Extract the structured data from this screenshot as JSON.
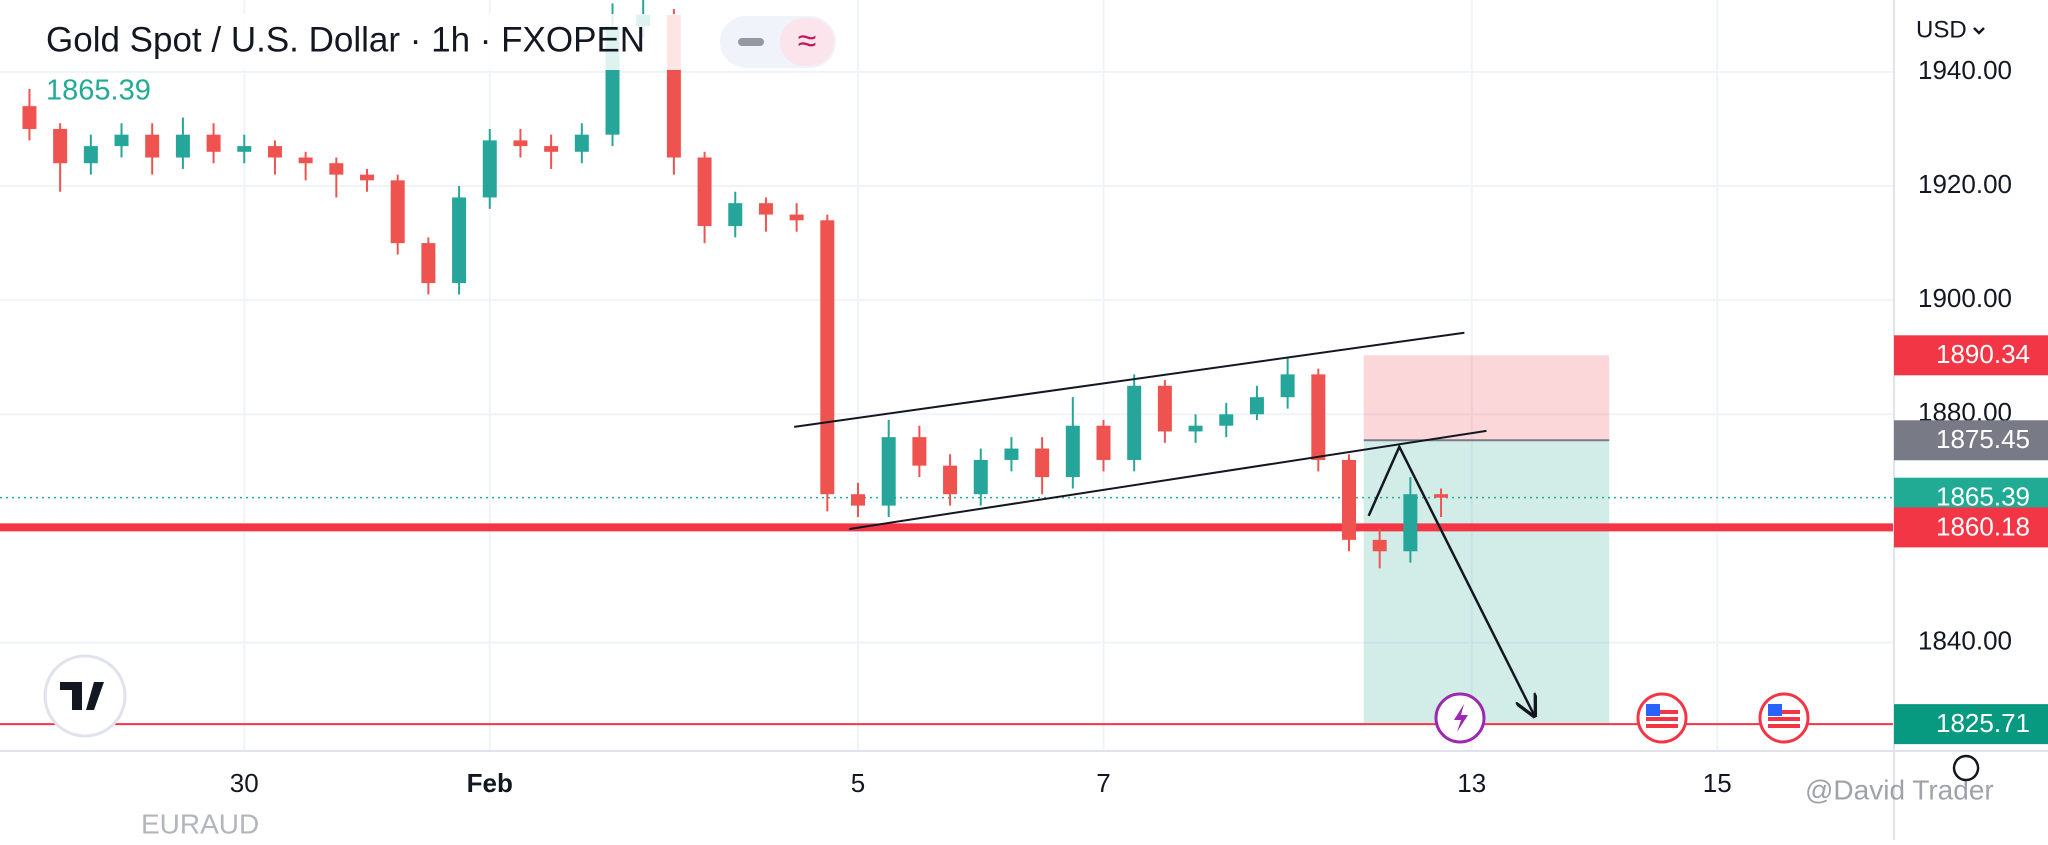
{
  "header": {
    "title": "Gold Spot / U.S. Dollar · 1h · FXOPEN",
    "currency": "USD",
    "watermark": "@David Trader",
    "next_symbol": "EURAUD"
  },
  "chart_data": {
    "type": "candlestick",
    "x": [
      -1.75,
      -1.5,
      -1.25,
      -1,
      -0.75,
      -0.5,
      -0.25,
      0,
      0.25,
      0.5,
      0.75,
      1,
      1.25,
      1.5,
      1.75,
      2,
      2.25,
      2.5,
      2.75,
      3,
      3.25,
      3.5,
      3.75,
      4,
      4.25,
      4.5,
      4.75,
      5,
      5.25,
      5.5,
      5.75,
      6,
      6.25,
      6.5,
      6.75,
      7,
      7.25,
      7.5,
      7.75,
      8,
      8.25,
      8.5,
      8.75,
      9,
      9.25,
      9.5,
      9.75
    ],
    "open": [
      1934,
      1930,
      1924,
      1927,
      1929,
      1925,
      1929,
      1926,
      1927,
      1925,
      1924,
      1922,
      1921,
      1910,
      1903,
      1918,
      1928,
      1927,
      1926,
      1929,
      1948,
      1950,
      1925,
      1913,
      1917,
      1915,
      1914,
      1866,
      1864,
      1876,
      1871,
      1866,
      1872,
      1874,
      1869,
      1878,
      1872,
      1885,
      1877,
      1878,
      1880,
      1883,
      1887,
      1872,
      1858,
      1856,
      1866
    ],
    "high": [
      1937,
      1931,
      1929,
      1931,
      1931,
      1932,
      1931,
      1929,
      1928,
      1926,
      1925,
      1923,
      1922,
      1911,
      1920,
      1930,
      1930,
      1929,
      1931,
      1952,
      1953,
      1951,
      1926,
      1919,
      1918,
      1917,
      1915,
      1868,
      1879,
      1878,
      1873,
      1874,
      1876,
      1876,
      1883,
      1879,
      1887,
      1886,
      1880,
      1882,
      1885,
      1890,
      1888,
      1873,
      1860,
      1869,
      1867
    ],
    "low": [
      1928,
      1919,
      1922,
      1925,
      1922,
      1923,
      1924,
      1924,
      1922,
      1921,
      1918,
      1919,
      1908,
      1901,
      1901,
      1916,
      1925,
      1923,
      1924,
      1927,
      1946,
      1922,
      1910,
      1911,
      1912,
      1912,
      1863,
      1862,
      1862,
      1869,
      1864,
      1864,
      1870,
      1866,
      1867,
      1870,
      1870,
      1875,
      1875,
      1876,
      1879,
      1881,
      1870,
      1856,
      1853,
      1854,
      1862
    ],
    "close": [
      1930,
      1924,
      1927,
      1929,
      1925,
      1929,
      1926,
      1927,
      1925,
      1924,
      1922,
      1921,
      1910,
      1903,
      1918,
      1928,
      1927,
      1926,
      1929,
      1948,
      1950,
      1925,
      1913,
      1917,
      1915,
      1914,
      1866,
      1864,
      1876,
      1871,
      1866,
      1872,
      1874,
      1869,
      1878,
      1872,
      1885,
      1877,
      1878,
      1880,
      1883,
      1887,
      1872,
      1858,
      1856,
      1866,
      1865.39
    ],
    "up_color": "#26a69a",
    "down_color": "#ef5350",
    "xlim": [
      -1.99,
      13.44
    ],
    "ylim": [
      1821,
      1952.6
    ],
    "xticks": [
      {
        "value": 0,
        "label": "30"
      },
      {
        "value": 2,
        "label": "Feb"
      },
      5,
      7,
      {
        "value": 10,
        "label": "13"
      },
      {
        "value": 12,
        "label": "15"
      }
    ],
    "yticks": [
      {
        "value": 1840,
        "label": "1840.00"
      },
      {
        "value": 1860,
        "label": "1860.00"
      },
      {
        "value": 1880,
        "label": "1880.00"
      },
      {
        "value": 1900,
        "label": "1900.00"
      },
      {
        "value": 1920,
        "label": "1920.00"
      },
      {
        "value": 1940,
        "label": "1940.00"
      }
    ],
    "grid": true,
    "current_price": 1865.39,
    "current_color": "#22ab94",
    "support": 1860.18,
    "support_color": "#f23645",
    "position": {
      "x": [
        9.12,
        11.12
      ],
      "stop": 1890.34,
      "entry": 1875.45,
      "target": 1825.71,
      "stop_color": "#f23645",
      "entry_color": "#787b86",
      "target_color": "#089981"
    },
    "trendlines": [
      [
        [
          4.48,
          1877.8
        ],
        [
          9.94,
          1894.3
        ]
      ],
      [
        [
          4.93,
          1859.9
        ],
        [
          10.12,
          1877.1
        ]
      ]
    ],
    "arrow": [
      [
        9.16,
        1862.2
      ],
      [
        9.41,
        1874.3
      ],
      [
        10.51,
        1827.2
      ]
    ]
  }
}
